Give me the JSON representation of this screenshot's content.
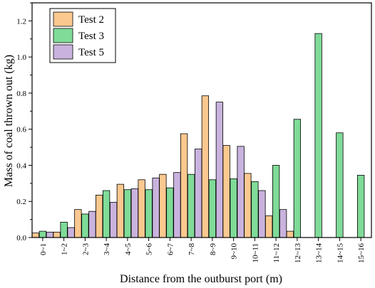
{
  "chart_data": {
    "type": "bar",
    "xlabel": "Distance from the outburst port (m)",
    "ylabel": "Mass of coal thrown out (kg)",
    "ylim": [
      0,
      1.3
    ],
    "yticks": [
      "0.0",
      "0.2",
      "0.4",
      "0.6",
      "0.8",
      "1.0",
      "1.2"
    ],
    "ytick_values": [
      0,
      0.2,
      0.4,
      0.6,
      0.8,
      1.0,
      1.2
    ],
    "categories": [
      "0~1",
      "1~2",
      "2~3",
      "3~4",
      "4~5",
      "5~6",
      "6~7",
      "7~8",
      "8~9",
      "9~10",
      "10~11",
      "11~12",
      "12~13",
      "13~14",
      "14~15",
      "15~16"
    ],
    "legend_position": "top-left",
    "grid": false,
    "series": [
      {
        "name": "Test 2",
        "color": "#fbc88f",
        "values": [
          0.025,
          0.03,
          0.155,
          0.235,
          0.295,
          0.32,
          0.35,
          0.575,
          0.785,
          0.51,
          0.355,
          0.12,
          0.035,
          null,
          null,
          null
        ]
      },
      {
        "name": "Test 3",
        "color": "#7fdb98",
        "values": [
          0.035,
          0.085,
          0.13,
          0.26,
          0.265,
          0.265,
          0.275,
          0.35,
          0.32,
          0.325,
          0.31,
          0.4,
          0.655,
          1.13,
          0.58,
          0.345
        ]
      },
      {
        "name": "Test 5",
        "color": "#c9b3de",
        "values": [
          0.03,
          0.055,
          0.145,
          0.195,
          0.27,
          0.33,
          0.36,
          0.49,
          0.75,
          0.505,
          0.26,
          0.155,
          null,
          null,
          null,
          null
        ]
      }
    ]
  }
}
